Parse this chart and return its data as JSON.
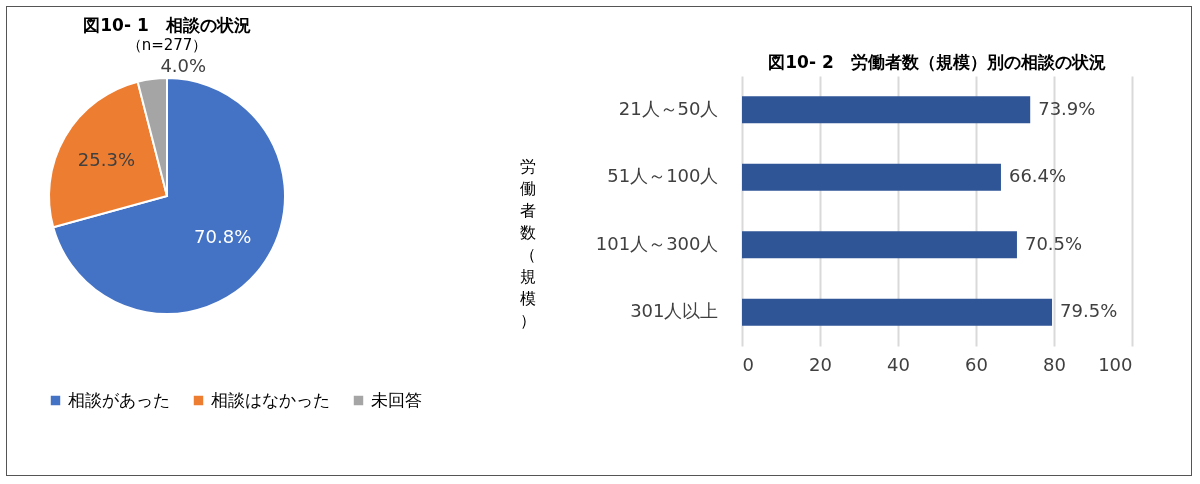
{
  "chart_data": [
    {
      "type": "pie",
      "title": "図10- 1　相談の状況",
      "subtitle": "（n=277）",
      "categories": [
        "相談があった",
        "相談はなかった",
        "未回答"
      ],
      "values": [
        70.8,
        25.3,
        4.0
      ],
      "colors": [
        "#4472c4",
        "#ed7d31",
        "#a5a5a5"
      ],
      "value_labels": [
        "70.8%",
        "25.3%",
        "4.0%"
      ],
      "legend": "bottom"
    },
    {
      "type": "bar",
      "orientation": "horizontal",
      "title": "図10- 2　労働者数（規模）別の相談の状況",
      "ylabel": "労働者数（規模）",
      "categories": [
        "21人～50人",
        "51人～100人",
        "101人～300人",
        "301人以上"
      ],
      "values": [
        73.9,
        66.4,
        70.5,
        79.5
      ],
      "color": "#2f5597",
      "value_labels": [
        "73.9%",
        "66.4%",
        "70.5%",
        "79.5%"
      ],
      "xlim": [
        0,
        100
      ],
      "xticks": [
        0,
        20,
        40,
        60,
        80,
        100
      ],
      "grid": "x"
    }
  ]
}
